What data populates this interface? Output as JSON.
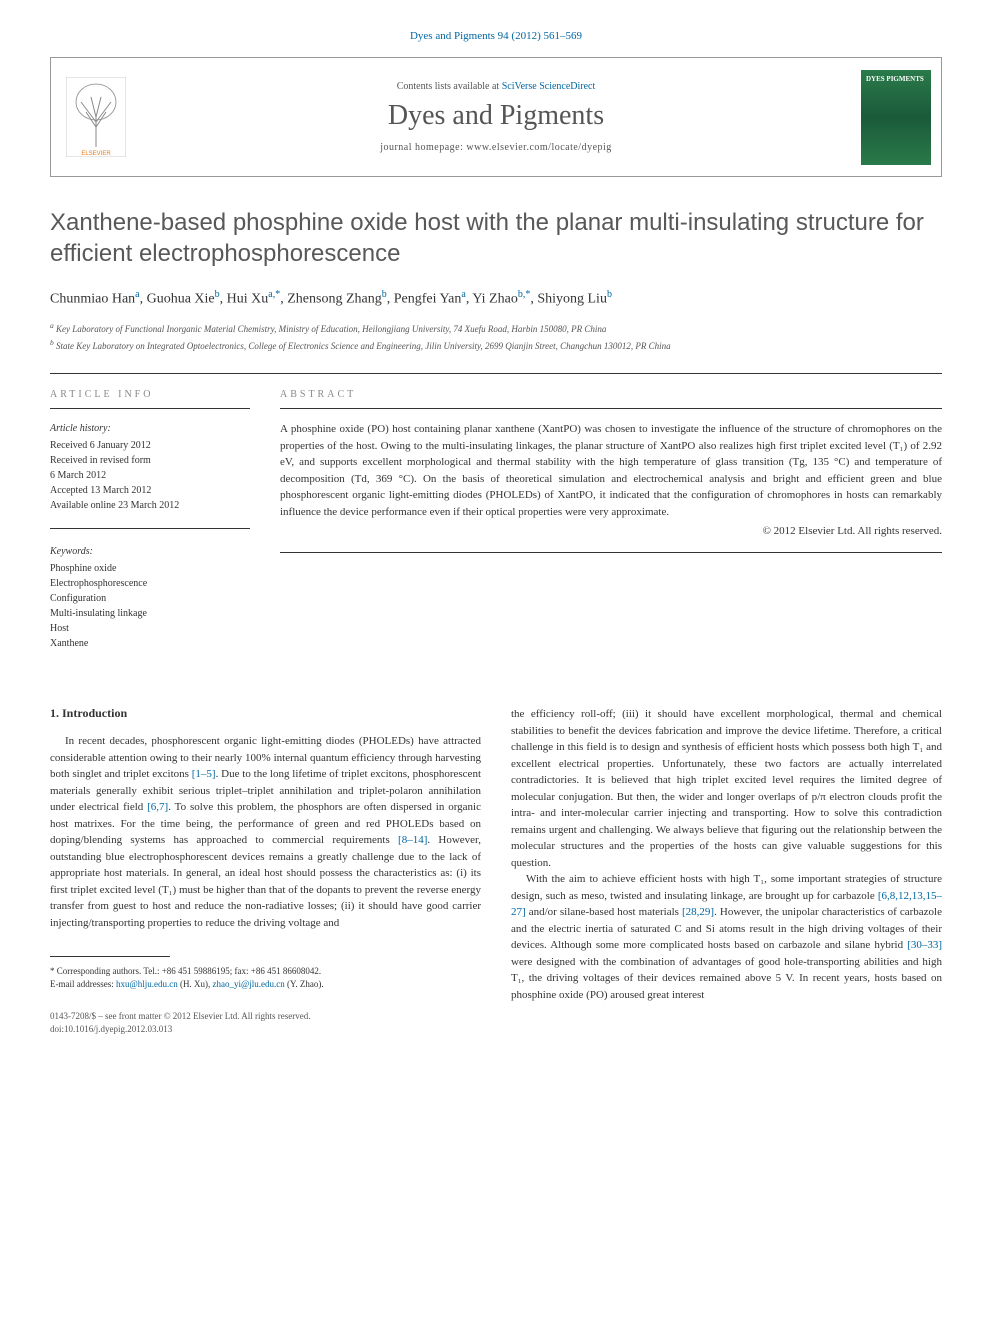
{
  "journal_ref": "Dyes and Pigments 94 (2012) 561–569",
  "header": {
    "contents_text": "Contents lists available at ",
    "contents_link": "SciVerse ScienceDirect",
    "journal_name": "Dyes and Pigments",
    "homepage_text": "journal homepage: www.elsevier.com/locate/dyepig",
    "publisher": "ELSEVIER",
    "cover_label": "DYES PIGMENTS"
  },
  "article": {
    "title": "Xanthene-based phosphine oxide host with the planar multi-insulating structure for efficient electrophosphorescence",
    "authors_html": "Chunmiao Han<sup>a</sup>, Guohua Xie<sup>b</sup>, Hui Xu<sup>a,*</sup>, Zhensong Zhang<sup>b</sup>, Pengfei Yan<sup>a</sup>, Yi Zhao<sup>b,*</sup>, Shiyong Liu<sup>b</sup>",
    "affiliations": {
      "a": "Key Laboratory of Functional Inorganic Material Chemistry, Ministry of Education, Heilongjiang University, 74 Xuefu Road, Harbin 150080, PR China",
      "b": "State Key Laboratory on Integrated Optoelectronics, College of Electronics Science and Engineering, Jilin University, 2699 Qianjin Street, Changchun 130012, PR China"
    }
  },
  "article_info": {
    "heading": "ARTICLE INFO",
    "history_label": "Article history:",
    "history": [
      "Received 6 January 2012",
      "Received in revised form",
      "6 March 2012",
      "Accepted 13 March 2012",
      "Available online 23 March 2012"
    ],
    "keywords_label": "Keywords:",
    "keywords": [
      "Phosphine oxide",
      "Electrophosphorescence",
      "Configuration",
      "Multi-insulating linkage",
      "Host",
      "Xanthene"
    ]
  },
  "abstract": {
    "heading": "ABSTRACT",
    "text": "A phosphine oxide (PO) host containing planar xanthene (XantPO) was chosen to investigate the influence of the structure of chromophores on the properties of the host. Owing to the multi-insulating linkages, the planar structure of XantPO also realizes high first triplet excited level (T₁) of 2.92 eV, and supports excellent morphological and thermal stability with the high temperature of glass transition (Tg, 135 °C) and temperature of decomposition (Td, 369 °C). On the basis of theoretical simulation and electrochemical analysis and bright and efficient green and blue phosphorescent organic light-emitting diodes (PHOLEDs) of XantPO, it indicated that the configuration of chromophores in hosts can remarkably influence the device performance even if their optical properties were very approximate.",
    "copyright": "© 2012 Elsevier Ltd. All rights reserved."
  },
  "body": {
    "section_num": "1.",
    "section_title": "Introduction",
    "col1_p1_pre": "In recent decades, phosphorescent organic light-emitting diodes (PHOLEDs) have attracted considerable attention owing to their nearly 100% internal quantum efficiency through harvesting both singlet and triplet excitons ",
    "ref1": "[1–5]",
    "col1_p1_mid1": ". Due to the long lifetime of triplet excitons, phosphorescent materials generally exhibit serious triplet–triplet annihilation and triplet-polaron annihilation under electrical field ",
    "ref2": "[6,7]",
    "col1_p1_mid2": ". To solve this problem, the phosphors are often dispersed in organic host matrixes. For the time being, the performance of green and red PHOLEDs based on doping/blending systems has approached to commercial requirements ",
    "ref3": "[8–14]",
    "col1_p1_post": ". However, outstanding blue electrophosphorescent devices remains a greatly challenge due to the lack of appropriate host materials. In general, an ideal host should possess the characteristics as: (i) its first triplet excited level (T₁) must be higher than that of the dopants to prevent the reverse energy transfer from guest to host and reduce the non-radiative losses; (ii) it should have good carrier injecting/transporting properties to reduce the driving voltage and",
    "col2_p1": "the efficiency roll-off; (iii) it should have excellent morphological, thermal and chemical stabilities to benefit the devices fabrication and improve the device lifetime. Therefore, a critical challenge in this field is to design and synthesis of efficient hosts which possess both high T₁ and excellent electrical properties. Unfortunately, these two factors are actually interrelated contradictories. It is believed that high triplet excited level requires the limited degree of molecular conjugation. But then, the wider and longer overlaps of p/π electron clouds profit the intra- and inter-molecular carrier injecting and transporting. How to solve this contradiction remains urgent and challenging. We always believe that figuring out the relationship between the molecular structures and the properties of the hosts can give valuable suggestions for this question.",
    "col2_p2_pre": "With the aim to achieve efficient hosts with high T₁, some important strategies of structure design, such as meso, twisted and insulating linkage, are brought up for carbazole ",
    "ref4": "[6,8,12,13,15–27]",
    "col2_p2_mid1": " and/or silane-based host materials ",
    "ref5": "[28,29]",
    "col2_p2_mid2": ". However, the unipolar characteristics of carbazole and the electric inertia of saturated C and Si atoms result in the high driving voltages of their devices. Although some more complicated hosts based on carbazole and silane hybrid ",
    "ref6": "[30–33]",
    "col2_p2_post": " were designed with the combination of advantages of good hole-transporting abilities and high T₁, the driving voltages of their devices remained above 5 V. In recent years, hosts based on phosphine oxide (PO) aroused great interest"
  },
  "footnote": {
    "corresponding": "* Corresponding authors. Tel.: +86 451 59886195; fax: +86 451 86608042.",
    "email_label": "E-mail addresses: ",
    "email1": "hxu@hlju.edu.cn",
    "email1_name": " (H. Xu), ",
    "email2": "zhao_yi@jlu.edu.cn",
    "email2_name": " (Y. Zhao)."
  },
  "footer": {
    "line1": "0143-7208/$ – see front matter © 2012 Elsevier Ltd. All rights reserved.",
    "line2": "doi:10.1016/j.dyepig.2012.03.013"
  },
  "colors": {
    "link_blue": "#0066a1",
    "text_gray": "#585858",
    "cover_green": "#2a7a4a"
  }
}
